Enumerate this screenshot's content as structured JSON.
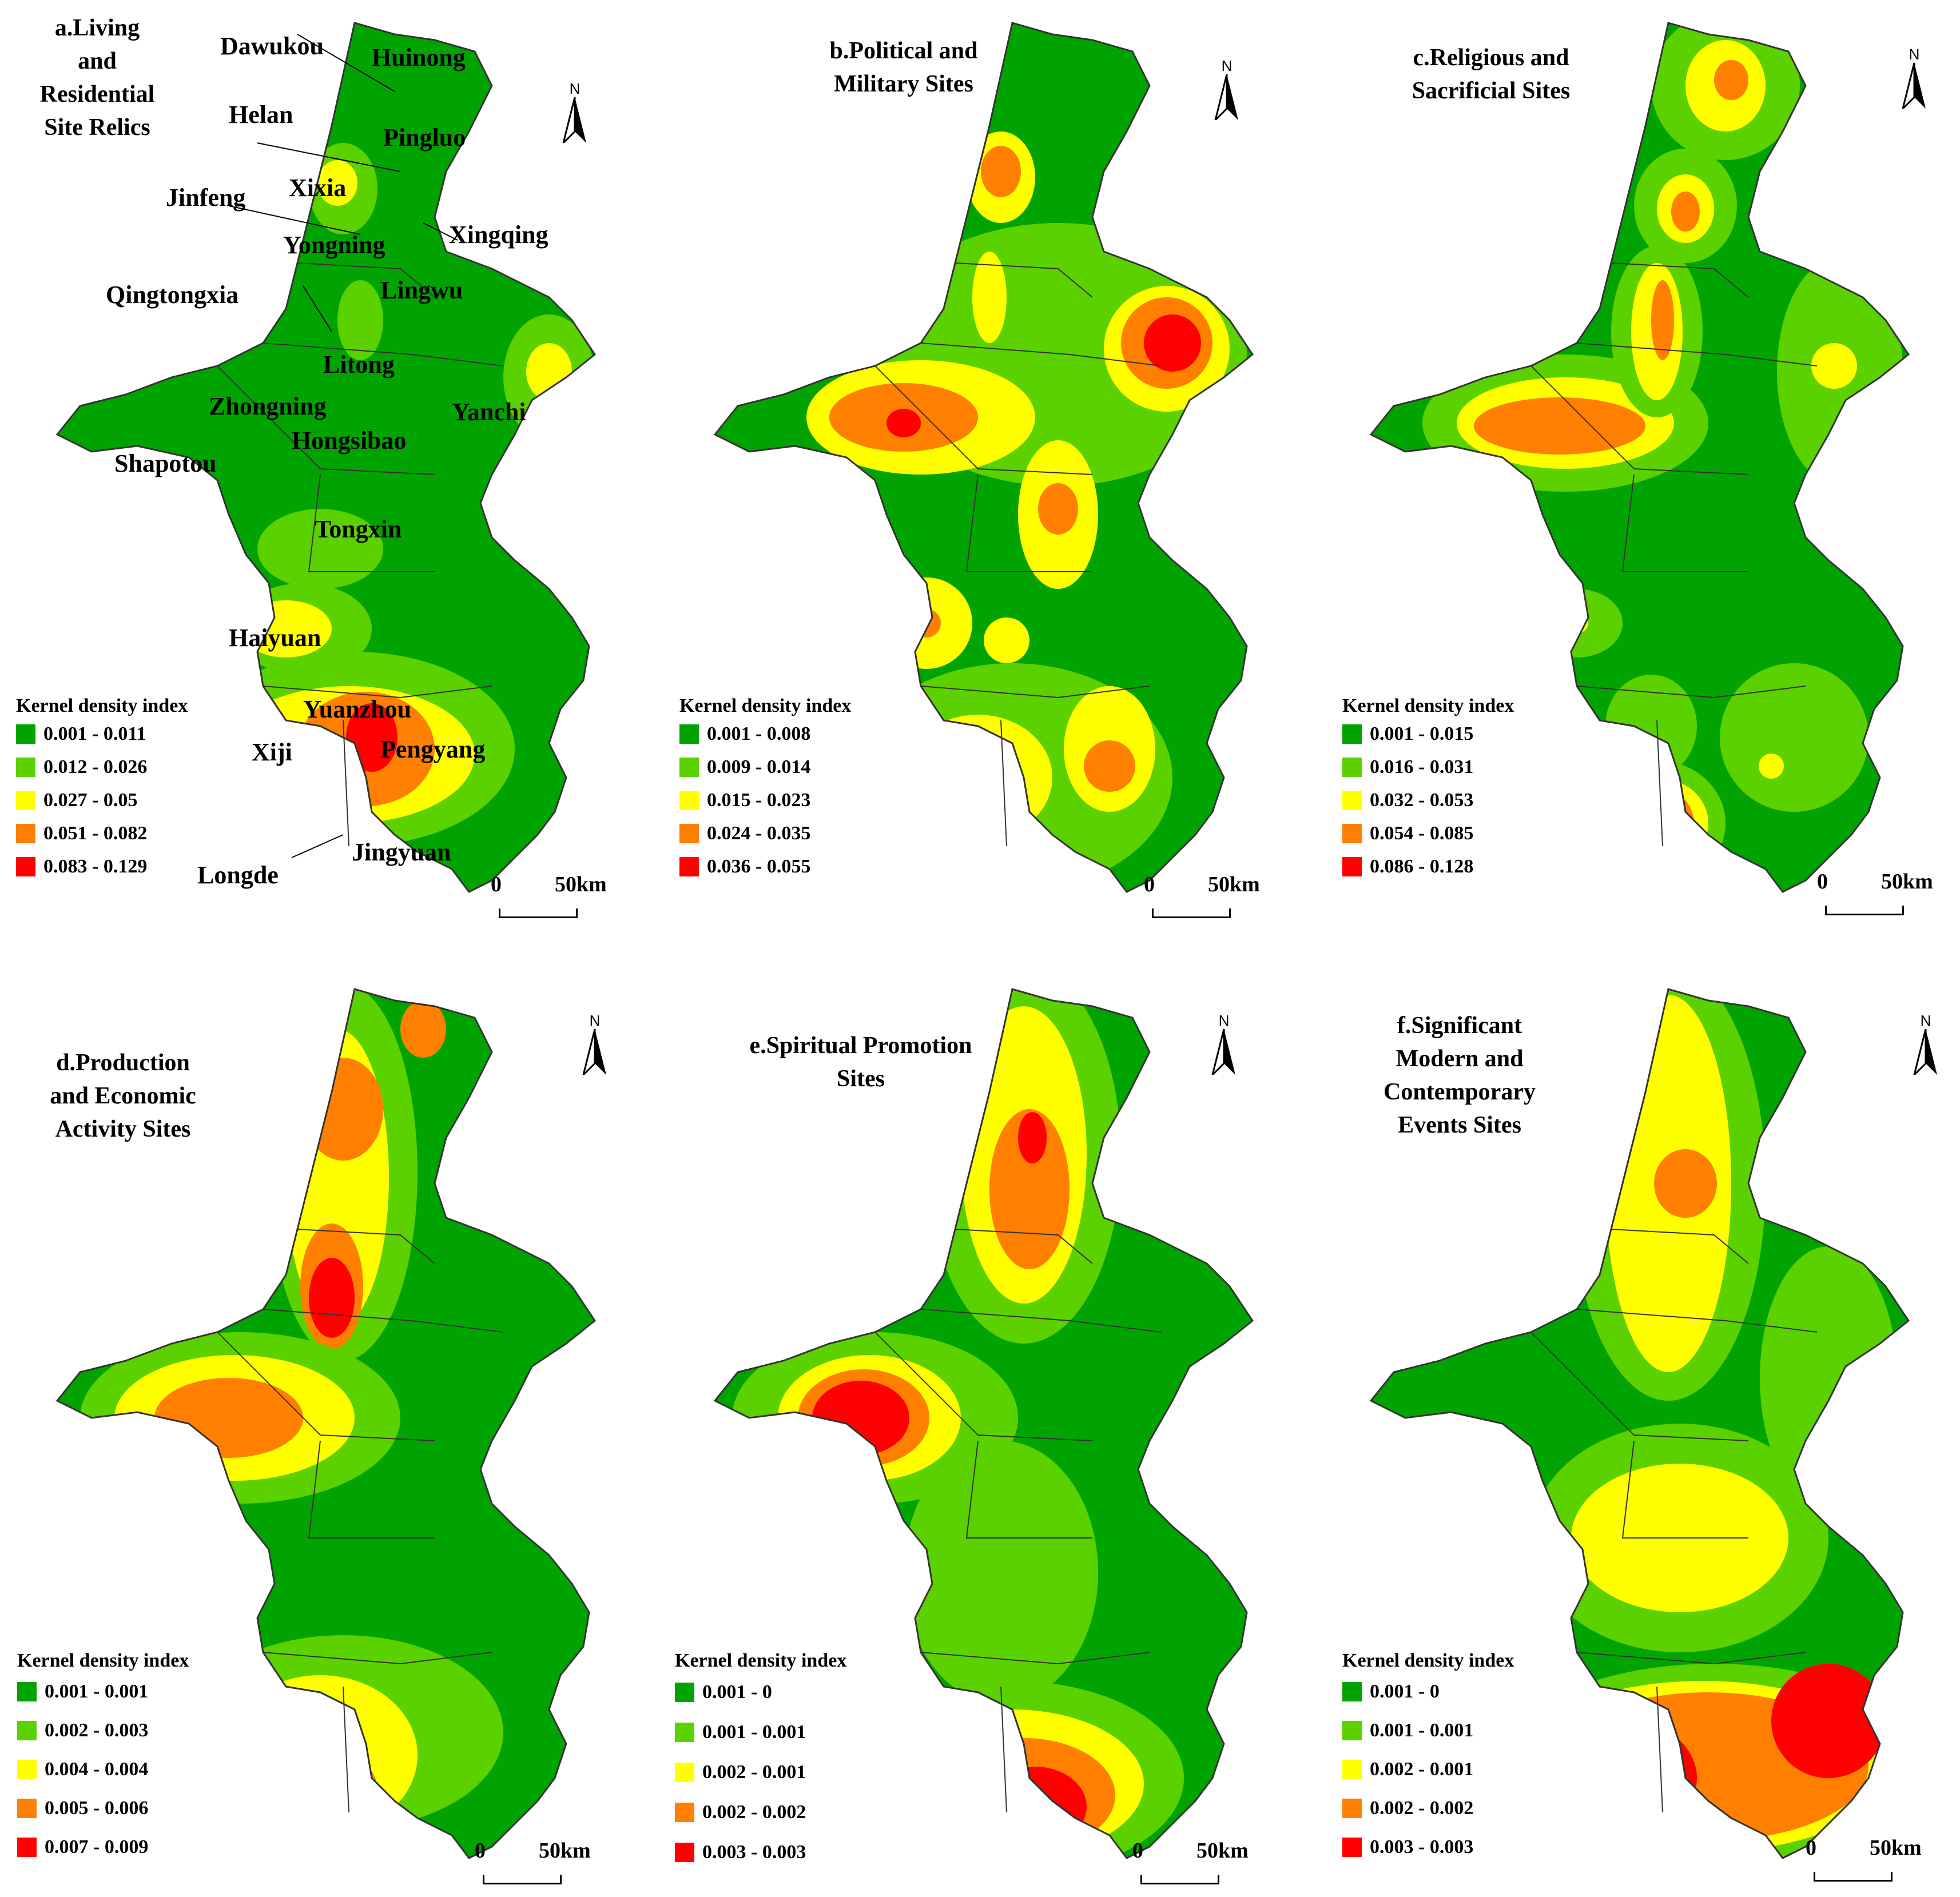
{
  "colors": [
    "#00a300",
    "#5cd100",
    "#ffff00",
    "#ff7f00",
    "#ff0000"
  ],
  "legend_title": "Kernel density index",
  "north_label": "N",
  "scale": {
    "zero": "0",
    "fifty": "50km"
  },
  "panels": [
    {
      "title_lines": [
        "a.Living",
        "and",
        "Residential",
        "Site Relics"
      ],
      "classes": [
        "0.001 - 0.011",
        "0.012 - 0.026",
        "0.027 - 0.05",
        "0.051 - 0.082",
        "0.083 - 0.129"
      ]
    },
    {
      "title_lines": [
        "b.Political and",
        "Military Sites"
      ],
      "classes": [
        "0.001 - 0.008",
        "0.009 - 0.014",
        "0.015 - 0.023",
        "0.024 - 0.035",
        "0.036 - 0.055"
      ]
    },
    {
      "title_lines": [
        "c.Religious and",
        "Sacrificial Sites"
      ],
      "classes": [
        "0.001 - 0.015",
        "0.016 - 0.031",
        "0.032 - 0.053",
        "0.054 - 0.085",
        "0.086 - 0.128"
      ]
    },
    {
      "title_lines": [
        "d.Production",
        "and Economic",
        "Activity Sites"
      ],
      "classes": [
        "0.001 - 0.001",
        "0.002 - 0.003",
        "0.004 - 0.004",
        "0.005 - 0.006",
        "0.007 - 0.009"
      ]
    },
    {
      "title_lines": [
        "e.Spiritual Promotion",
        "Sites"
      ],
      "classes": [
        "0.001 - 0",
        "0.001 - 0.001",
        "0.002 - 0.001",
        "0.002 - 0.002",
        "0.003 - 0.003"
      ]
    },
    {
      "title_lines": [
        "f.Significant",
        "Modern and",
        "Contemporary",
        "Events Sites"
      ],
      "classes": [
        "0.001 - 0",
        "0.001 - 0.001",
        "0.002 - 0.001",
        "0.002 - 0.002",
        "0.003 - 0.003"
      ]
    }
  ],
  "place_names": {
    "dawukou": "Dawukou",
    "huinong": "Huinong",
    "helan": "Helan",
    "pingluo": "Pingluo",
    "jinfeng": "Jinfeng",
    "xixia": "Xixia",
    "xingqing": "Xingqing",
    "yongning": "Yongning",
    "lingwu": "Lingwu",
    "qingtongxia": "Qingtongxia",
    "litong": "Litong",
    "zhongning": "Zhongning",
    "yanchi": "Yanchi",
    "hongsibao": "Hongsibao",
    "shapotou": "Shapotou",
    "tongxin": "Tongxin",
    "haiyuan": "Haiyuan",
    "yuanzhou": "Yuanzhou",
    "xiji": "Xiji",
    "pengyang": "Pengyang",
    "jingyuan": "Jingyuan",
    "longde": "Longde"
  }
}
